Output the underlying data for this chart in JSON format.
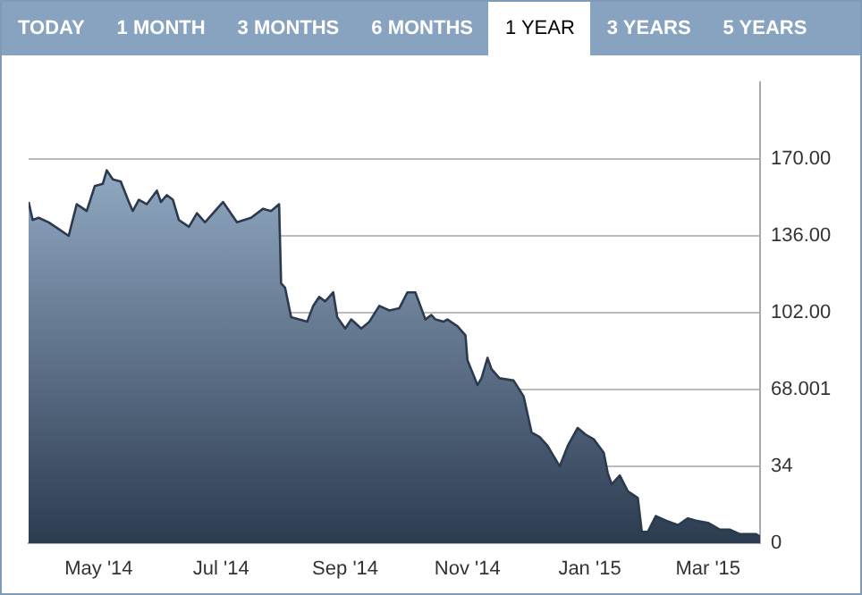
{
  "chart_data": {
    "type": "area",
    "annotations": [
      "TODAY",
      "1 MONTH",
      "3 MONTHS",
      "6 MONTHS",
      "1 YEAR",
      "3 YEARS",
      "5 YEARS"
    ],
    "x": [
      "2014-03-27",
      "2014-03-29",
      "2014-04-01",
      "2014-04-06",
      "2014-04-11",
      "2014-04-16",
      "2014-04-20",
      "2014-04-25",
      "2014-04-29",
      "2014-05-03",
      "2014-05-05",
      "2014-05-08",
      "2014-05-12",
      "2014-05-16",
      "2014-05-18",
      "2014-05-21",
      "2014-05-25",
      "2014-05-30",
      "2014-06-01",
      "2014-06-04",
      "2014-06-07",
      "2014-06-10",
      "2014-06-15",
      "2014-06-19",
      "2014-06-23",
      "2014-07-02",
      "2014-07-09",
      "2014-07-16",
      "2014-07-22",
      "2014-07-26",
      "2014-07-30",
      "2014-07-31",
      "2014-08-02",
      "2014-08-05",
      "2014-08-09",
      "2014-08-13",
      "2014-08-16",
      "2014-08-19",
      "2014-08-22",
      "2014-08-26",
      "2014-08-28",
      "2014-09-01",
      "2014-09-04",
      "2014-09-09",
      "2014-09-13",
      "2014-09-18",
      "2014-09-23",
      "2014-09-28",
      "2014-10-02",
      "2014-10-06",
      "2014-10-11",
      "2014-10-14",
      "2014-10-16",
      "2014-10-20",
      "2014-10-22",
      "2014-10-27",
      "2014-10-31",
      "2014-11-01",
      "2014-11-06",
      "2014-11-08",
      "2014-11-11",
      "2014-11-13",
      "2014-11-17",
      "2014-11-24",
      "2014-11-29",
      "2014-12-03",
      "2014-12-07",
      "2014-12-11",
      "2014-12-17",
      "2014-12-21",
      "2014-12-26",
      "2014-12-30",
      "2015-01-03",
      "2015-01-08",
      "2015-01-10",
      "2015-01-12",
      "2015-01-16",
      "2015-01-20",
      "2015-01-25",
      "2015-01-27",
      "2015-01-30",
      "2015-02-03",
      "2015-02-08",
      "2015-02-14",
      "2015-02-19",
      "2015-02-23",
      "2015-03-01",
      "2015-03-07",
      "2015-03-12",
      "2015-03-17",
      "2015-03-25",
      "2015-03-27"
    ],
    "series": [
      {
        "color": "#2b3a4f",
        "values": [
          151,
          143,
          144,
          142,
          139,
          136,
          150,
          147,
          158,
          159,
          165,
          161,
          160,
          151,
          147,
          152,
          150,
          156,
          151,
          154,
          152,
          143,
          140,
          146,
          142,
          151,
          142,
          144,
          148,
          147,
          150,
          115,
          113,
          100,
          99,
          98,
          105,
          109,
          107,
          111,
          100,
          95,
          99,
          95,
          98,
          105,
          103,
          104,
          111,
          111,
          99,
          101,
          99,
          98,
          99,
          96,
          92,
          81,
          70,
          73,
          82,
          77,
          73,
          72,
          65,
          49,
          47,
          43,
          34,
          43,
          51,
          48,
          46,
          40,
          31,
          26,
          30,
          23,
          20,
          5,
          5,
          12,
          10,
          8,
          11,
          10,
          9,
          6,
          6,
          4,
          4,
          3
        ]
      }
    ],
    "xlim": [
      "2014-03-27",
      "2015-03-27"
    ],
    "xticks": [
      {
        "value": "2014-05-01",
        "label": "May '14"
      },
      {
        "value": "2014-07-01",
        "label": "Jul '14"
      },
      {
        "value": "2014-09-01",
        "label": "Sep '14"
      },
      {
        "value": "2014-11-01",
        "label": "Nov '14"
      },
      {
        "value": "2015-01-01",
        "label": "Jan '15"
      },
      {
        "value": "2015-03-01",
        "label": "Mar '15"
      }
    ],
    "ylim": [
      0,
      204
    ],
    "yticks": [
      {
        "value": 0,
        "label": "0"
      },
      {
        "value": 34,
        "label": "34"
      },
      68.001,
      {
        "value": 102,
        "label": "102.00"
      },
      {
        "value": 136,
        "label": "136.00"
      },
      {
        "value": 170,
        "label": "170.00"
      }
    ],
    "grid": "y",
    "legend": false,
    "marker": "none",
    "line_style": "solid"
  }
}
